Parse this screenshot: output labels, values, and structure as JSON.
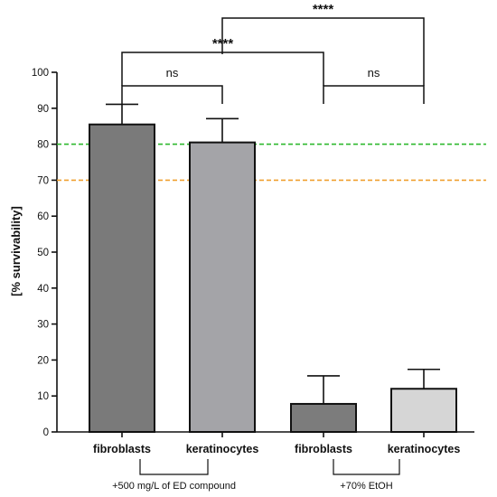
{
  "chart_data": {
    "type": "bar",
    "ylabel": "[% survivability]",
    "ylim": [
      0,
      100
    ],
    "yticks": [
      "0",
      "10",
      "20",
      "30",
      "40",
      "50",
      "60",
      "70",
      "80",
      "90",
      "100"
    ],
    "categories": [
      "fibroblasts",
      "keratinocytes",
      "fibroblasts",
      "keratinocytes"
    ],
    "values": [
      85.5,
      80.5,
      7.8,
      12.0
    ],
    "errors": [
      5.6,
      6.6,
      7.8,
      5.4
    ],
    "bar_colors": [
      "#7a7a7a",
      "#a4a4a8",
      "#7c7c7c",
      "#d6d6d6"
    ],
    "groups": [
      {
        "label": "+500 mg/L of ED compound",
        "categories": [
          0,
          1
        ]
      },
      {
        "label": "+70% EtOH",
        "categories": [
          2,
          3
        ]
      }
    ],
    "reference_lines": [
      {
        "value": 80,
        "color": "#2db82d",
        "style": "dashed"
      },
      {
        "value": 70,
        "color": "#f0a030",
        "style": "dashed"
      }
    ],
    "significance": [
      {
        "from": 0,
        "to": 1,
        "label": "ns"
      },
      {
        "from": 2,
        "to": 3,
        "label": "ns"
      },
      {
        "from": 0,
        "to": 2,
        "label": "****"
      },
      {
        "from": 1,
        "to": 3,
        "label": "****"
      }
    ],
    "grid": false
  }
}
